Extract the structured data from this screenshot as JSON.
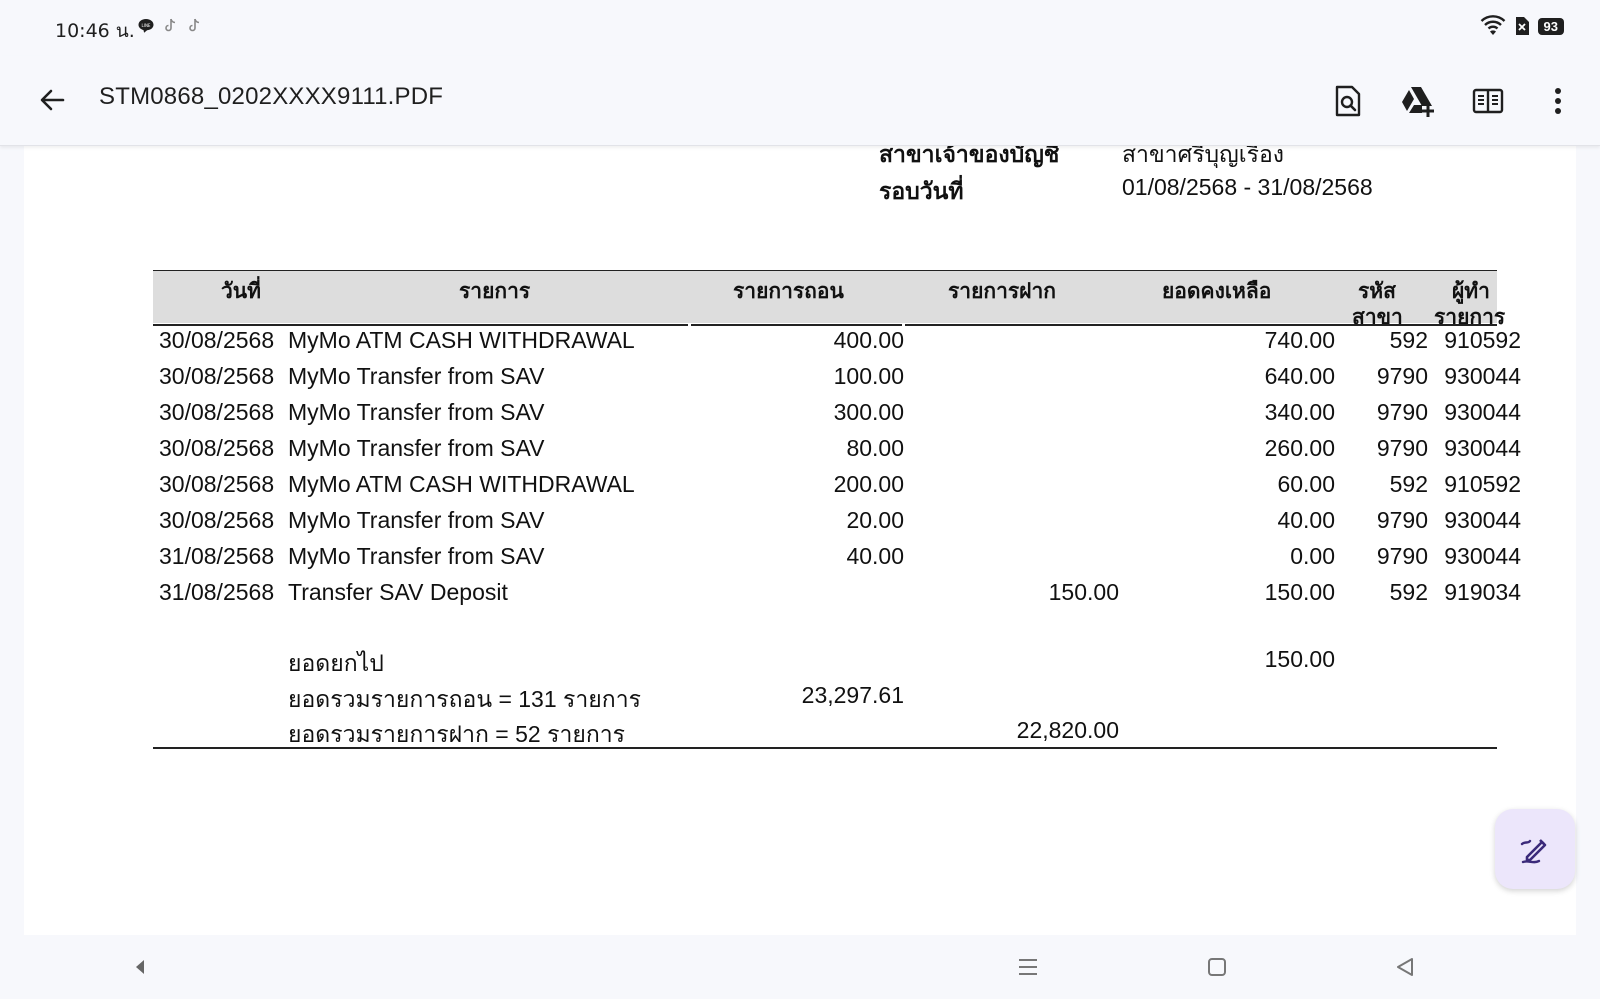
{
  "status_bar": {
    "time": "10:46 น.",
    "battery": "93",
    "notification_icons": [
      "line-icon",
      "tiktok-icon",
      "tiktok-icon"
    ],
    "system_icons": [
      "wifi-icon",
      "no-sim-icon",
      "battery-icon"
    ]
  },
  "app_bar": {
    "title": "STM0868_0202XXXX9111.PDF",
    "actions": [
      "search-in-document-icon",
      "google-drive-add-icon",
      "reading-mode-icon",
      "more-vertical-icon"
    ]
  },
  "statement_header": {
    "branch_label": "สาขาเจ้าของบัญชี",
    "branch_value": "สาขาศรีบุญเรือง",
    "period_label": "รอบวันที่",
    "period_value": "01/08/2568 - 31/08/2568"
  },
  "table": {
    "headers": {
      "date": "วันที่",
      "description": "รายการ",
      "withdrawal": "รายการถอน",
      "deposit": "รายการฝาก",
      "balance": "ยอดคงเหลือ",
      "branch_code_1": "รหัส",
      "branch_code_2": "สาขา",
      "teller_1": "ผู้ทำ",
      "teller_2": "รายการ"
    },
    "rows": [
      {
        "date": "30/08/2568",
        "description": "MyMo ATM CASH WITHDRAWAL",
        "withdrawal": "400.00",
        "deposit": "",
        "balance": "740.00",
        "branch": "592",
        "teller": "910592"
      },
      {
        "date": "30/08/2568",
        "description": "MyMo Transfer from SAV",
        "withdrawal": "100.00",
        "deposit": "",
        "balance": "640.00",
        "branch": "9790",
        "teller": "930044"
      },
      {
        "date": "30/08/2568",
        "description": "MyMo Transfer from SAV",
        "withdrawal": "300.00",
        "deposit": "",
        "balance": "340.00",
        "branch": "9790",
        "teller": "930044"
      },
      {
        "date": "30/08/2568",
        "description": "MyMo Transfer from SAV",
        "withdrawal": "80.00",
        "deposit": "",
        "balance": "260.00",
        "branch": "9790",
        "teller": "930044"
      },
      {
        "date": "30/08/2568",
        "description": "MyMo ATM CASH WITHDRAWAL",
        "withdrawal": "200.00",
        "deposit": "",
        "balance": "60.00",
        "branch": "592",
        "teller": "910592"
      },
      {
        "date": "30/08/2568",
        "description": "MyMo Transfer from SAV",
        "withdrawal": "20.00",
        "deposit": "",
        "balance": "40.00",
        "branch": "9790",
        "teller": "930044"
      },
      {
        "date": "31/08/2568",
        "description": "MyMo Transfer from SAV",
        "withdrawal": "40.00",
        "deposit": "",
        "balance": "0.00",
        "branch": "9790",
        "teller": "930044"
      },
      {
        "date": "31/08/2568",
        "description": "Transfer SAV Deposit",
        "withdrawal": "",
        "deposit": "150.00",
        "balance": "150.00",
        "branch": "592",
        "teller": "919034"
      }
    ]
  },
  "summary": {
    "carry_forward_label": "ยอดยกไป",
    "carry_forward_value": "150.00",
    "total_withdrawal_label": "ยอดรวมรายการถอน = 131 รายการ",
    "total_withdrawal_value": "23,297.61",
    "total_deposit_label": "ยอดรวมรายการฝาก = 52 รายการ",
    "total_deposit_value": "22,820.00"
  },
  "fab": {
    "icon": "edit-pen-icon"
  },
  "nav_bar": {
    "icons": [
      "left-arrow-icon",
      "recents-icon",
      "home-icon",
      "back-icon"
    ]
  },
  "colors": {
    "background": "#f7f8fc",
    "table_header": "#dddddd",
    "fab": "#ece6fb",
    "fab_icon": "#3b2a7a"
  }
}
